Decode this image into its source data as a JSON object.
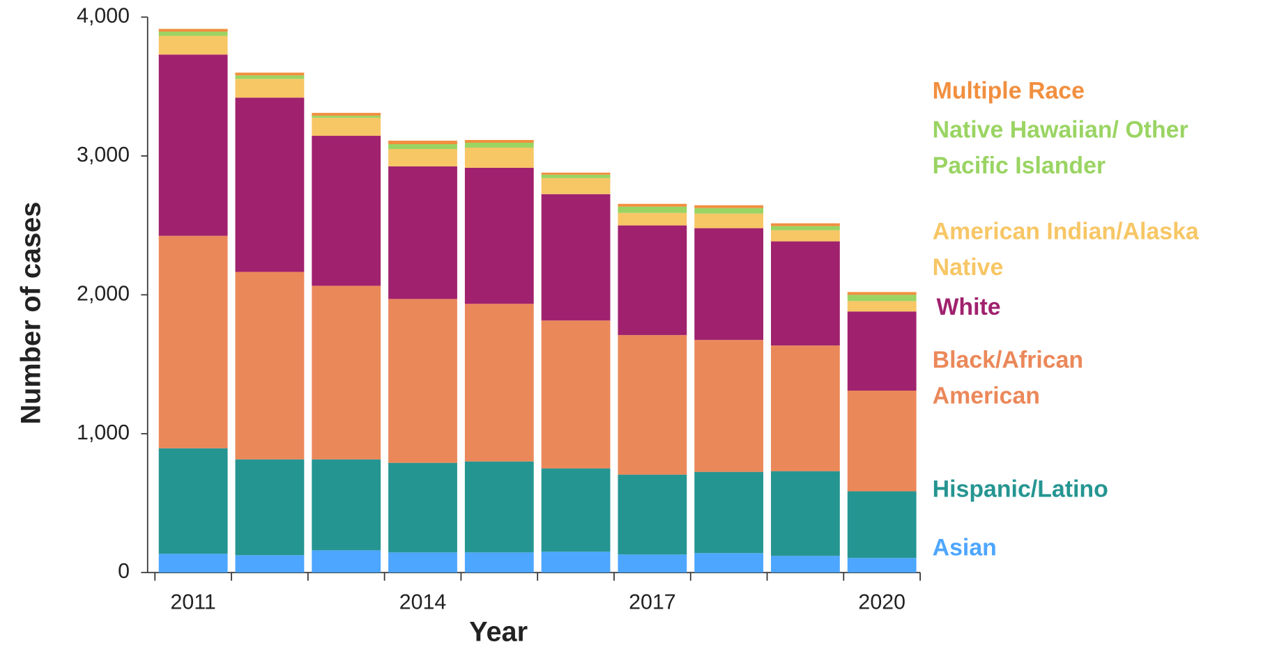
{
  "chart_data": {
    "type": "stacked_bar",
    "xlabel": "Year",
    "ylabel": "Number of cases",
    "categories": [
      "2011",
      null,
      null,
      "2014",
      null,
      null,
      "2017",
      null,
      null,
      "2020"
    ],
    "series": [
      {
        "name": "Asian",
        "color": "#4da6ff",
        "values": [
          135,
          125,
          160,
          145,
          145,
          150,
          130,
          140,
          120,
          105
        ]
      },
      {
        "name": "Hispanic/Latino",
        "color": "#259591",
        "values": [
          760,
          690,
          655,
          645,
          655,
          600,
          575,
          585,
          610,
          480
        ]
      },
      {
        "name": "Black/African American",
        "color": "#eb885a",
        "values": [
          1530,
          1350,
          1250,
          1180,
          1135,
          1065,
          1005,
          950,
          905,
          725
        ]
      },
      {
        "name": "White",
        "color": "#a0226e",
        "values": [
          1305,
          1255,
          1080,
          955,
          980,
          910,
          790,
          805,
          750,
          570
        ]
      },
      {
        "name": "American Indian/Alaska Native",
        "color": "#f7c665",
        "values": [
          135,
          135,
          130,
          125,
          145,
          115,
          90,
          105,
          80,
          75
        ]
      },
      {
        "name": "Native Hawaiian/ Other Pacific Islander",
        "color": "#9ad463",
        "values": [
          30,
          25,
          15,
          35,
          35,
          25,
          45,
          40,
          30,
          45
        ]
      },
      {
        "name": "Multiple Race",
        "color": "#f18f3f",
        "values": [
          20,
          20,
          20,
          25,
          20,
          15,
          20,
          20,
          20,
          20
        ]
      }
    ],
    "ylim": [
      0,
      4000
    ],
    "yticks": [
      0,
      {
        "value": 1000,
        "label": "1,000"
      },
      {
        "value": 2000,
        "label": "2,000"
      },
      {
        "value": 3000,
        "label": "3,000"
      },
      {
        "value": 4000,
        "label": "4,000"
      }
    ]
  }
}
